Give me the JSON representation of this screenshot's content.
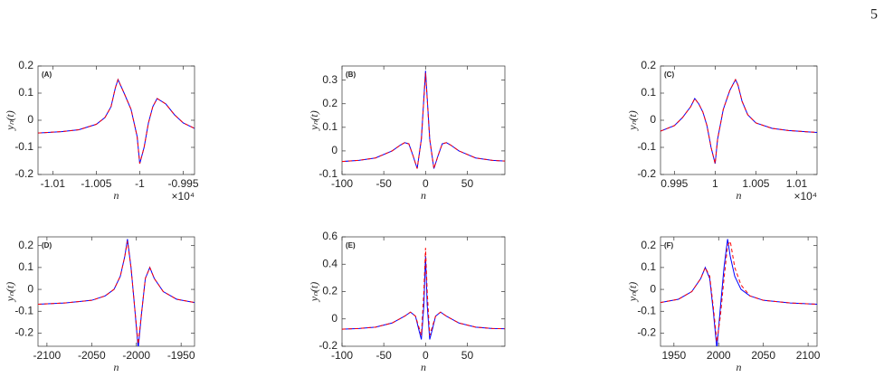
{
  "page_number": "5",
  "chart_data": [
    {
      "type": "line",
      "panel_label": "(A)",
      "xlabel": "n",
      "ylabel": "yₙ(t)",
      "x_exponent_label": "×10⁴",
      "x": [
        -1.0117,
        -1.009,
        -1.007,
        -1.005,
        -1.004,
        -1.0033,
        -1.0028,
        -1.0025,
        -1.0018,
        -1.001,
        -1.0003,
        -1.0,
        -0.9995,
        -0.999,
        -0.9985,
        -0.998,
        -0.997,
        -0.996,
        -0.995,
        -0.9937
      ],
      "series": [
        {
          "color": "#0000ff",
          "style": "solid",
          "values": [
            -0.047,
            -0.042,
            -0.035,
            -0.015,
            0.01,
            0.05,
            0.12,
            0.15,
            0.1,
            0.04,
            -0.06,
            -0.16,
            -0.1,
            -0.01,
            0.05,
            0.08,
            0.06,
            0.02,
            -0.01,
            -0.03
          ]
        },
        {
          "color": "#ff0000",
          "style": "dashed",
          "values": [
            -0.047,
            -0.042,
            -0.035,
            -0.015,
            0.01,
            0.05,
            0.12,
            0.15,
            0.1,
            0.04,
            -0.06,
            -0.16,
            -0.1,
            -0.01,
            0.05,
            0.08,
            0.06,
            0.02,
            -0.01,
            -0.03
          ]
        }
      ],
      "xlim": [
        -1.0117,
        -0.9937
      ],
      "xticks": [
        -1.01,
        -1.005,
        -1,
        -0.995
      ],
      "ylim": [
        -0.2,
        0.2
      ],
      "yticks": [
        -0.2,
        -0.1,
        0,
        0.1,
        0.2
      ]
    },
    {
      "type": "line",
      "panel_label": "(B)",
      "xlabel": "n",
      "ylabel": "yₙ(t)",
      "x": [
        -100,
        -80,
        -60,
        -40,
        -30,
        -25,
        -20,
        -15,
        -10,
        -5,
        0,
        5,
        10,
        15,
        20,
        25,
        30,
        40,
        60,
        80,
        95
      ],
      "series": [
        {
          "color": "#0000ff",
          "style": "solid",
          "values": [
            -0.045,
            -0.04,
            -0.03,
            0.0,
            0.025,
            0.035,
            0.03,
            -0.02,
            -0.075,
            0.05,
            0.34,
            0.05,
            -0.075,
            -0.02,
            0.03,
            0.035,
            0.025,
            0.0,
            -0.03,
            -0.04,
            -0.043
          ]
        },
        {
          "color": "#ff0000",
          "style": "dashed",
          "values": [
            -0.045,
            -0.04,
            -0.03,
            0.0,
            0.025,
            0.035,
            0.03,
            -0.02,
            -0.075,
            0.05,
            0.33,
            0.05,
            -0.075,
            -0.02,
            0.03,
            0.035,
            0.025,
            0.0,
            -0.03,
            -0.04,
            -0.043
          ]
        }
      ],
      "xlim": [
        -100,
        95
      ],
      "xticks": [
        -100,
        -50,
        0,
        50
      ],
      "ylim": [
        -0.1,
        0.36
      ],
      "yticks": [
        -0.1,
        0,
        0.1,
        0.2,
        0.3
      ]
    },
    {
      "type": "line",
      "panel_label": "(C)",
      "xlabel": "n",
      "ylabel": "yₙ(t)",
      "x_exponent_label": "×10⁴",
      "x": [
        0.9933,
        0.995,
        0.996,
        0.997,
        0.9975,
        0.998,
        0.9985,
        0.999,
        0.9995,
        1.0,
        1.0003,
        1.001,
        1.0018,
        1.0025,
        1.0028,
        1.0033,
        1.004,
        1.005,
        1.007,
        1.009,
        1.0125
      ],
      "series": [
        {
          "color": "#0000ff",
          "style": "solid",
          "values": [
            -0.04,
            -0.02,
            0.01,
            0.05,
            0.08,
            0.06,
            0.03,
            -0.02,
            -0.1,
            -0.16,
            -0.07,
            0.04,
            0.11,
            0.15,
            0.13,
            0.07,
            0.02,
            -0.01,
            -0.03,
            -0.038,
            -0.045
          ]
        },
        {
          "color": "#ff0000",
          "style": "dashed",
          "values": [
            -0.04,
            -0.02,
            0.01,
            0.05,
            0.08,
            0.06,
            0.03,
            -0.02,
            -0.1,
            -0.16,
            -0.07,
            0.04,
            0.11,
            0.15,
            0.13,
            0.07,
            0.02,
            -0.01,
            -0.03,
            -0.038,
            -0.045
          ]
        }
      ],
      "xlim": [
        0.9933,
        1.0125
      ],
      "xticks": [
        0.995,
        1,
        1.005,
        1.01
      ],
      "ylim": [
        -0.2,
        0.2
      ],
      "yticks": [
        -0.2,
        -0.1,
        0,
        0.1,
        0.2
      ]
    },
    {
      "type": "line",
      "panel_label": "(D)",
      "xlabel": "n",
      "ylabel": "yₙ(t)",
      "x": [
        -2110,
        -2080,
        -2050,
        -2035,
        -2025,
        -2018,
        -2013,
        -2010,
        -2006,
        -2002,
        -1998,
        -1994,
        -1990,
        -1985,
        -1980,
        -1970,
        -1955,
        -1935
      ],
      "series": [
        {
          "color": "#0000ff",
          "style": "solid",
          "values": [
            -0.068,
            -0.062,
            -0.05,
            -0.03,
            0.0,
            0.06,
            0.15,
            0.23,
            0.1,
            -0.08,
            -0.27,
            -0.1,
            0.05,
            0.1,
            0.05,
            -0.01,
            -0.045,
            -0.06
          ]
        },
        {
          "color": "#ff0000",
          "style": "dashed",
          "values": [
            -0.068,
            -0.062,
            -0.05,
            -0.03,
            0.0,
            0.06,
            0.15,
            0.22,
            0.1,
            -0.08,
            -0.25,
            -0.1,
            0.05,
            0.1,
            0.05,
            -0.01,
            -0.045,
            -0.06
          ]
        }
      ],
      "xlim": [
        -2110,
        -1935
      ],
      "xticks": [
        -2100,
        -2050,
        -2000,
        -1950
      ],
      "ylim": [
        -0.26,
        0.24
      ],
      "yticks": [
        -0.2,
        -0.1,
        0,
        0.1,
        0.2
      ]
    },
    {
      "type": "line",
      "panel_label": "(E)",
      "xlabel": "n",
      "ylabel": "yₙ(t)",
      "x": [
        -100,
        -80,
        -60,
        -40,
        -25,
        -18,
        -12,
        -8,
        -5,
        -2,
        0,
        2,
        5,
        8,
        12,
        18,
        25,
        40,
        60,
        80,
        95
      ],
      "series": [
        {
          "color": "#0000ff",
          "style": "solid",
          "values": [
            -0.075,
            -0.07,
            -0.06,
            -0.03,
            0.02,
            0.05,
            0.02,
            -0.08,
            -0.15,
            0.1,
            0.46,
            0.1,
            -0.15,
            -0.08,
            0.02,
            0.05,
            0.02,
            -0.03,
            -0.06,
            -0.07,
            -0.072
          ]
        },
        {
          "color": "#ff0000",
          "style": "dashed",
          "values": [
            -0.075,
            -0.07,
            -0.06,
            -0.03,
            0.02,
            0.05,
            0.02,
            -0.06,
            -0.12,
            0.2,
            0.52,
            0.2,
            -0.12,
            -0.06,
            0.02,
            0.05,
            0.02,
            -0.03,
            -0.06,
            -0.07,
            -0.072
          ]
        }
      ],
      "xlim": [
        -100,
        95
      ],
      "xticks": [
        -100,
        -50,
        0,
        50
      ],
      "ylim": [
        -0.2,
        0.6
      ],
      "yticks": [
        -0.2,
        0,
        0.2,
        0.4,
        0.6
      ]
    },
    {
      "type": "line",
      "panel_label": "(F)",
      "xlabel": "n",
      "ylabel": "yₙ(t)",
      "x": [
        1935,
        1955,
        1970,
        1980,
        1985,
        1990,
        1994,
        1998,
        2002,
        2006,
        2010,
        2013,
        2018,
        2025,
        2035,
        2050,
        2080,
        2110
      ],
      "series": [
        {
          "color": "#0000ff",
          "style": "solid",
          "values": [
            -0.06,
            -0.045,
            -0.01,
            0.05,
            0.1,
            0.05,
            -0.1,
            -0.27,
            -0.08,
            0.1,
            0.23,
            0.15,
            0.06,
            0.0,
            -0.03,
            -0.05,
            -0.062,
            -0.068
          ]
        },
        {
          "color": "#ff0000",
          "style": "dashed",
          "values": [
            -0.06,
            -0.045,
            -0.01,
            0.05,
            0.1,
            0.06,
            -0.08,
            -0.24,
            -0.12,
            0.05,
            0.2,
            0.22,
            0.1,
            0.02,
            -0.03,
            -0.05,
            -0.062,
            -0.068
          ]
        }
      ],
      "xlim": [
        1935,
        2110
      ],
      "xticks": [
        1950,
        2000,
        2050,
        2100
      ],
      "ylim": [
        -0.26,
        0.24
      ],
      "yticks": [
        -0.2,
        -0.1,
        0,
        0.1,
        0.2
      ]
    }
  ]
}
